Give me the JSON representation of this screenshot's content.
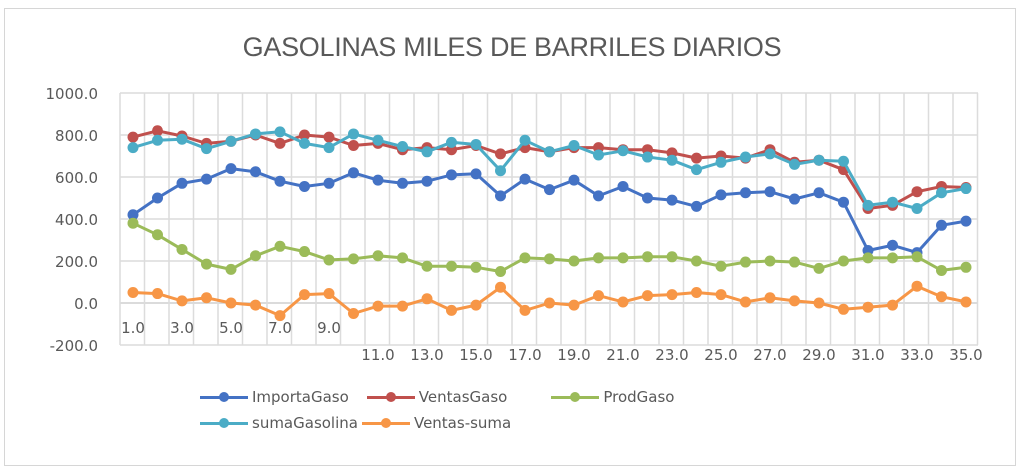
{
  "chart_data": {
    "type": "line",
    "title": "GASOLINAS MILES DE BARRILES DIARIOS",
    "xlabel": "",
    "ylabel": "",
    "ylim": [
      -200,
      1000
    ],
    "yticks": [
      "1000.0",
      "800.0",
      "600.0",
      "400.0",
      "200.0",
      "0.0",
      "-200.0"
    ],
    "ytick_values": [
      1000,
      800,
      600,
      400,
      200,
      0,
      -200
    ],
    "xticks": [
      "1.0",
      "3.0",
      "5.0",
      "7.0",
      "9.0",
      "11.0",
      "13.0",
      "15.0",
      "17.0",
      "19.0",
      "21.0",
      "23.0",
      "25.0",
      "27.0",
      "29.0",
      "31.0",
      "33.0",
      "35.0"
    ],
    "x": [
      1,
      2,
      3,
      4,
      5,
      6,
      7,
      8,
      9,
      10,
      11,
      12,
      13,
      14,
      15,
      16,
      17,
      18,
      19,
      20,
      21,
      22,
      23,
      24,
      25,
      26,
      27,
      28,
      29,
      30,
      31,
      32,
      33,
      34,
      35
    ],
    "grid": true,
    "legend_position": "bottom",
    "series": [
      {
        "name": "ImportaGaso",
        "color": "#4472c4",
        "values": [
          420,
          500,
          570,
          590,
          640,
          625,
          580,
          555,
          570,
          620,
          585,
          570,
          580,
          610,
          615,
          510,
          590,
          540,
          585,
          510,
          555,
          500,
          490,
          460,
          515,
          525,
          530,
          495,
          525,
          480,
          250,
          275,
          240,
          370,
          390
        ]
      },
      {
        "name": "VentasGaso",
        "color": "#c0504d",
        "values": [
          790,
          820,
          795,
          760,
          770,
          800,
          760,
          800,
          790,
          750,
          760,
          730,
          740,
          730,
          750,
          710,
          740,
          720,
          740,
          740,
          730,
          730,
          715,
          690,
          700,
          690,
          730,
          670,
          680,
          635,
          450,
          465,
          530,
          555,
          550
        ]
      },
      {
        "name": "ProdGaso",
        "color": "#9bbb59",
        "values": [
          380,
          325,
          255,
          185,
          160,
          225,
          270,
          245,
          205,
          210,
          225,
          215,
          175,
          175,
          170,
          150,
          215,
          210,
          200,
          215,
          215,
          220,
          220,
          200,
          175,
          195,
          200,
          195,
          165,
          200,
          215,
          215,
          220,
          155,
          170
        ]
      },
      {
        "name": "sumaGasolina",
        "color": "#4bacc6",
        "values": [
          740,
          775,
          780,
          735,
          770,
          805,
          815,
          760,
          740,
          805,
          775,
          745,
          720,
          765,
          755,
          630,
          775,
          720,
          750,
          705,
          725,
          695,
          680,
          635,
          670,
          695,
          710,
          660,
          680,
          675,
          465,
          480,
          450,
          525,
          545
        ]
      },
      {
        "name": "Ventas-suma",
        "color": "#f79646",
        "values": [
          50,
          45,
          10,
          25,
          0,
          -10,
          -60,
          40,
          45,
          -50,
          -15,
          -15,
          20,
          -35,
          -10,
          75,
          -35,
          0,
          -10,
          35,
          5,
          35,
          40,
          50,
          40,
          5,
          25,
          10,
          0,
          -30,
          -20,
          -10,
          80,
          30,
          5
        ]
      }
    ]
  },
  "legend": {
    "rows": [
      [
        {
          "label": "ImportaGaso",
          "color": "#4472c4"
        },
        {
          "label": "VentasGaso",
          "color": "#c0504d"
        },
        {
          "label": "ProdGaso",
          "color": "#9bbb59"
        }
      ],
      [
        {
          "label": "sumaGasolina",
          "color": "#4bacc6"
        },
        {
          "label": "Ventas-suma",
          "color": "#f79646"
        }
      ]
    ]
  }
}
